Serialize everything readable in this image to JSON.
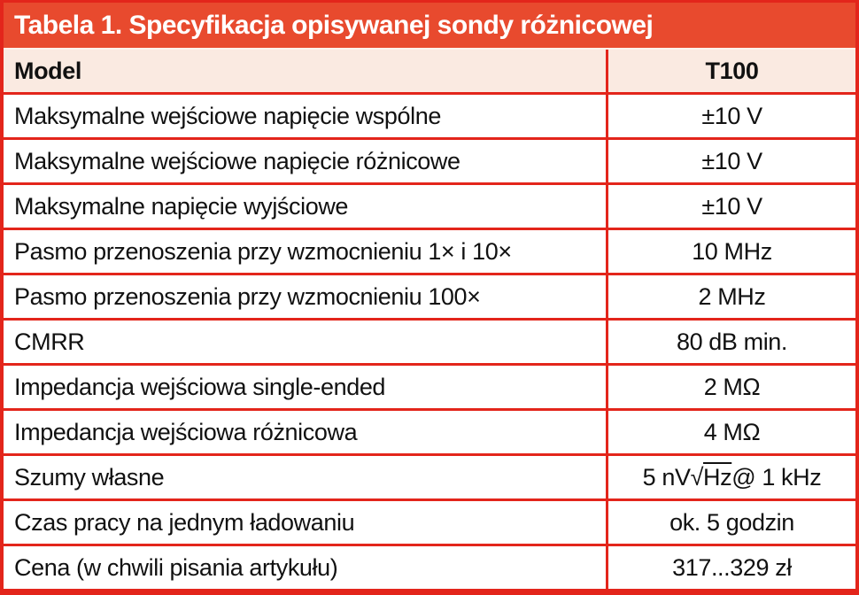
{
  "table": {
    "title": "Tabela 1. Specyfikacja opisywanej sondy różnicowej",
    "header": {
      "label": "Model",
      "value": "T100"
    },
    "rows": [
      {
        "label": "Maksymalne wejściowe napięcie wspólne",
        "value": "±10 V"
      },
      {
        "label": "Maksymalne wejściowe napięcie różnicowe",
        "value": "±10 V"
      },
      {
        "label": "Maksymalne napięcie wyjściowe",
        "value": "±10 V"
      },
      {
        "label": "Pasmo przenoszenia przy wzmocnieniu 1× i 10×",
        "value": "10 MHz"
      },
      {
        "label": "Pasmo przenoszenia przy wzmocnieniu 100×",
        "value": "2 MHz"
      },
      {
        "label": "CMRR",
        "value": "80 dB min."
      },
      {
        "label": "Impedancja wejściowa single-ended",
        "value": "2 MΩ"
      },
      {
        "label": "Impedancja wejściowa różnicowa",
        "value": "4 MΩ"
      },
      {
        "label": "Szumy własne",
        "value": "5 nV√Hz @ 1 kHz",
        "overline": "Hz"
      },
      {
        "label": "Czas pracy na jednym ładowaniu",
        "value": "ok. 5 godzin"
      },
      {
        "label": "Cena (w chwili pisania artykułu)",
        "value": "317...329 zł"
      }
    ],
    "colors": {
      "title_bg": "#e84a2e",
      "grid_border": "#e3251b",
      "header_row_bg": "#faeae1",
      "title_text": "#ffffff",
      "body_text": "#111111"
    }
  }
}
